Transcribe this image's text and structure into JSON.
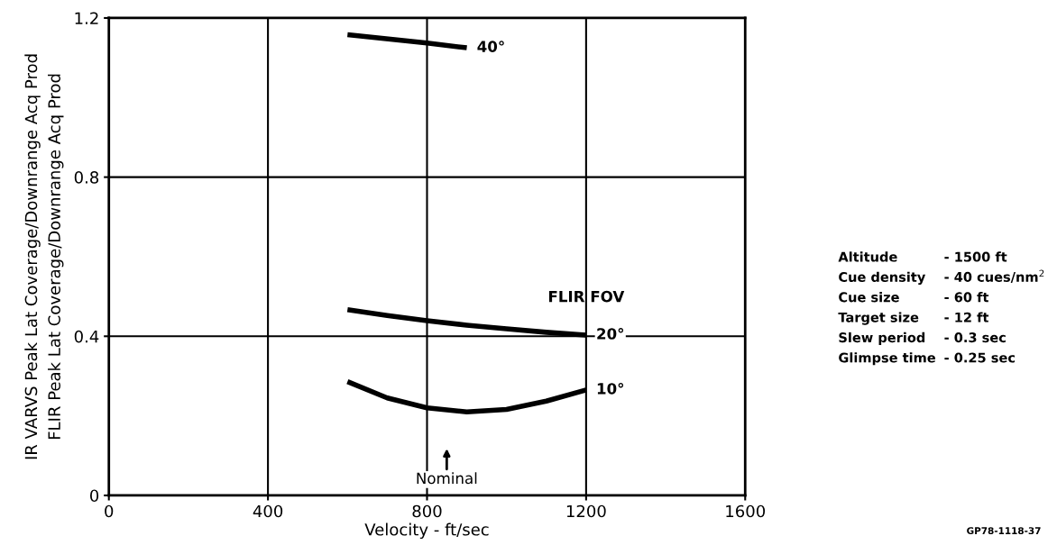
{
  "chart_data": {
    "type": "line",
    "xlabel": "Velocity - ft/sec",
    "ylabel": "IR VARVS Peak Lat Coverage/Downrange Acq Prod\nFLIR Peak Lat Coverage/Downrange Acq Prod",
    "legend_title": "FLIR FOV",
    "xlim": [
      0,
      1600
    ],
    "xticks": [
      0,
      400,
      800,
      1200,
      1600
    ],
    "ylim": [
      0,
      1.2
    ],
    "yticks": [
      0,
      0.4,
      0.8,
      1.2
    ],
    "grid": true,
    "legend": false,
    "line_style": "solid",
    "marker": "none",
    "series": [
      {
        "name": "40°",
        "color": "#000000",
        "x": [
          600,
          800,
          900
        ],
        "values": [
          1.158,
          1.137,
          1.125
        ]
      },
      {
        "name": "20°",
        "color": "#000000",
        "x": [
          600,
          700,
          800,
          900,
          1000,
          1100,
          1200
        ],
        "values": [
          0.467,
          0.452,
          0.439,
          0.428,
          0.419,
          0.41,
          0.403
        ]
      },
      {
        "name": "10°",
        "color": "#000000",
        "x": [
          600,
          700,
          800,
          900,
          1000,
          1100,
          1200
        ],
        "values": [
          0.286,
          0.245,
          0.22,
          0.21,
          0.216,
          0.237,
          0.265
        ]
      }
    ],
    "annotations": [
      "Nominal",
      "Altitude - 1500 ft",
      "Cue density - 40 cues/nm$^{2}$",
      "Cue size - 60 ft",
      "Target size - 12 ft",
      "Slew period - 0.3 sec",
      "Glimpse time - 0.25 sec",
      "GP78-1118-37"
    ]
  }
}
